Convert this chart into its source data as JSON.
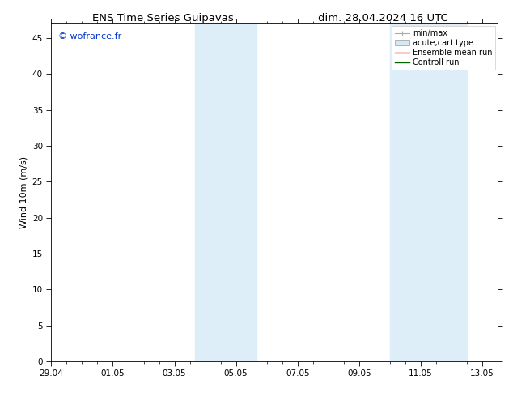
{
  "title_left": "ENS Time Series Guipavas",
  "title_right": "dim. 28.04.2024 16 UTC",
  "ylabel": "Wind 10m (m/s)",
  "ylim": [
    0,
    47
  ],
  "yticks": [
    0,
    5,
    10,
    15,
    20,
    25,
    30,
    35,
    40,
    45
  ],
  "xlim": [
    0,
    14.5
  ],
  "xtick_labels": [
    "29.04",
    "01.05",
    "03.05",
    "05.05",
    "07.05",
    "09.05",
    "11.05",
    "13.05"
  ],
  "xtick_positions": [
    0,
    2,
    4,
    6,
    8,
    10,
    12,
    14
  ],
  "background_color": "#ffffff",
  "shaded_regions": [
    {
      "start": 4.67,
      "end": 6.67
    },
    {
      "start": 11.0,
      "end": 13.5
    }
  ],
  "shaded_color": "#ddeef8",
  "watermark_text": "© wofrance.fr",
  "watermark_color": "#0033cc",
  "font_size_title": 9.5,
  "font_size_labels": 8,
  "font_size_ticks": 7.5,
  "font_size_legend": 7,
  "font_size_watermark": 8
}
